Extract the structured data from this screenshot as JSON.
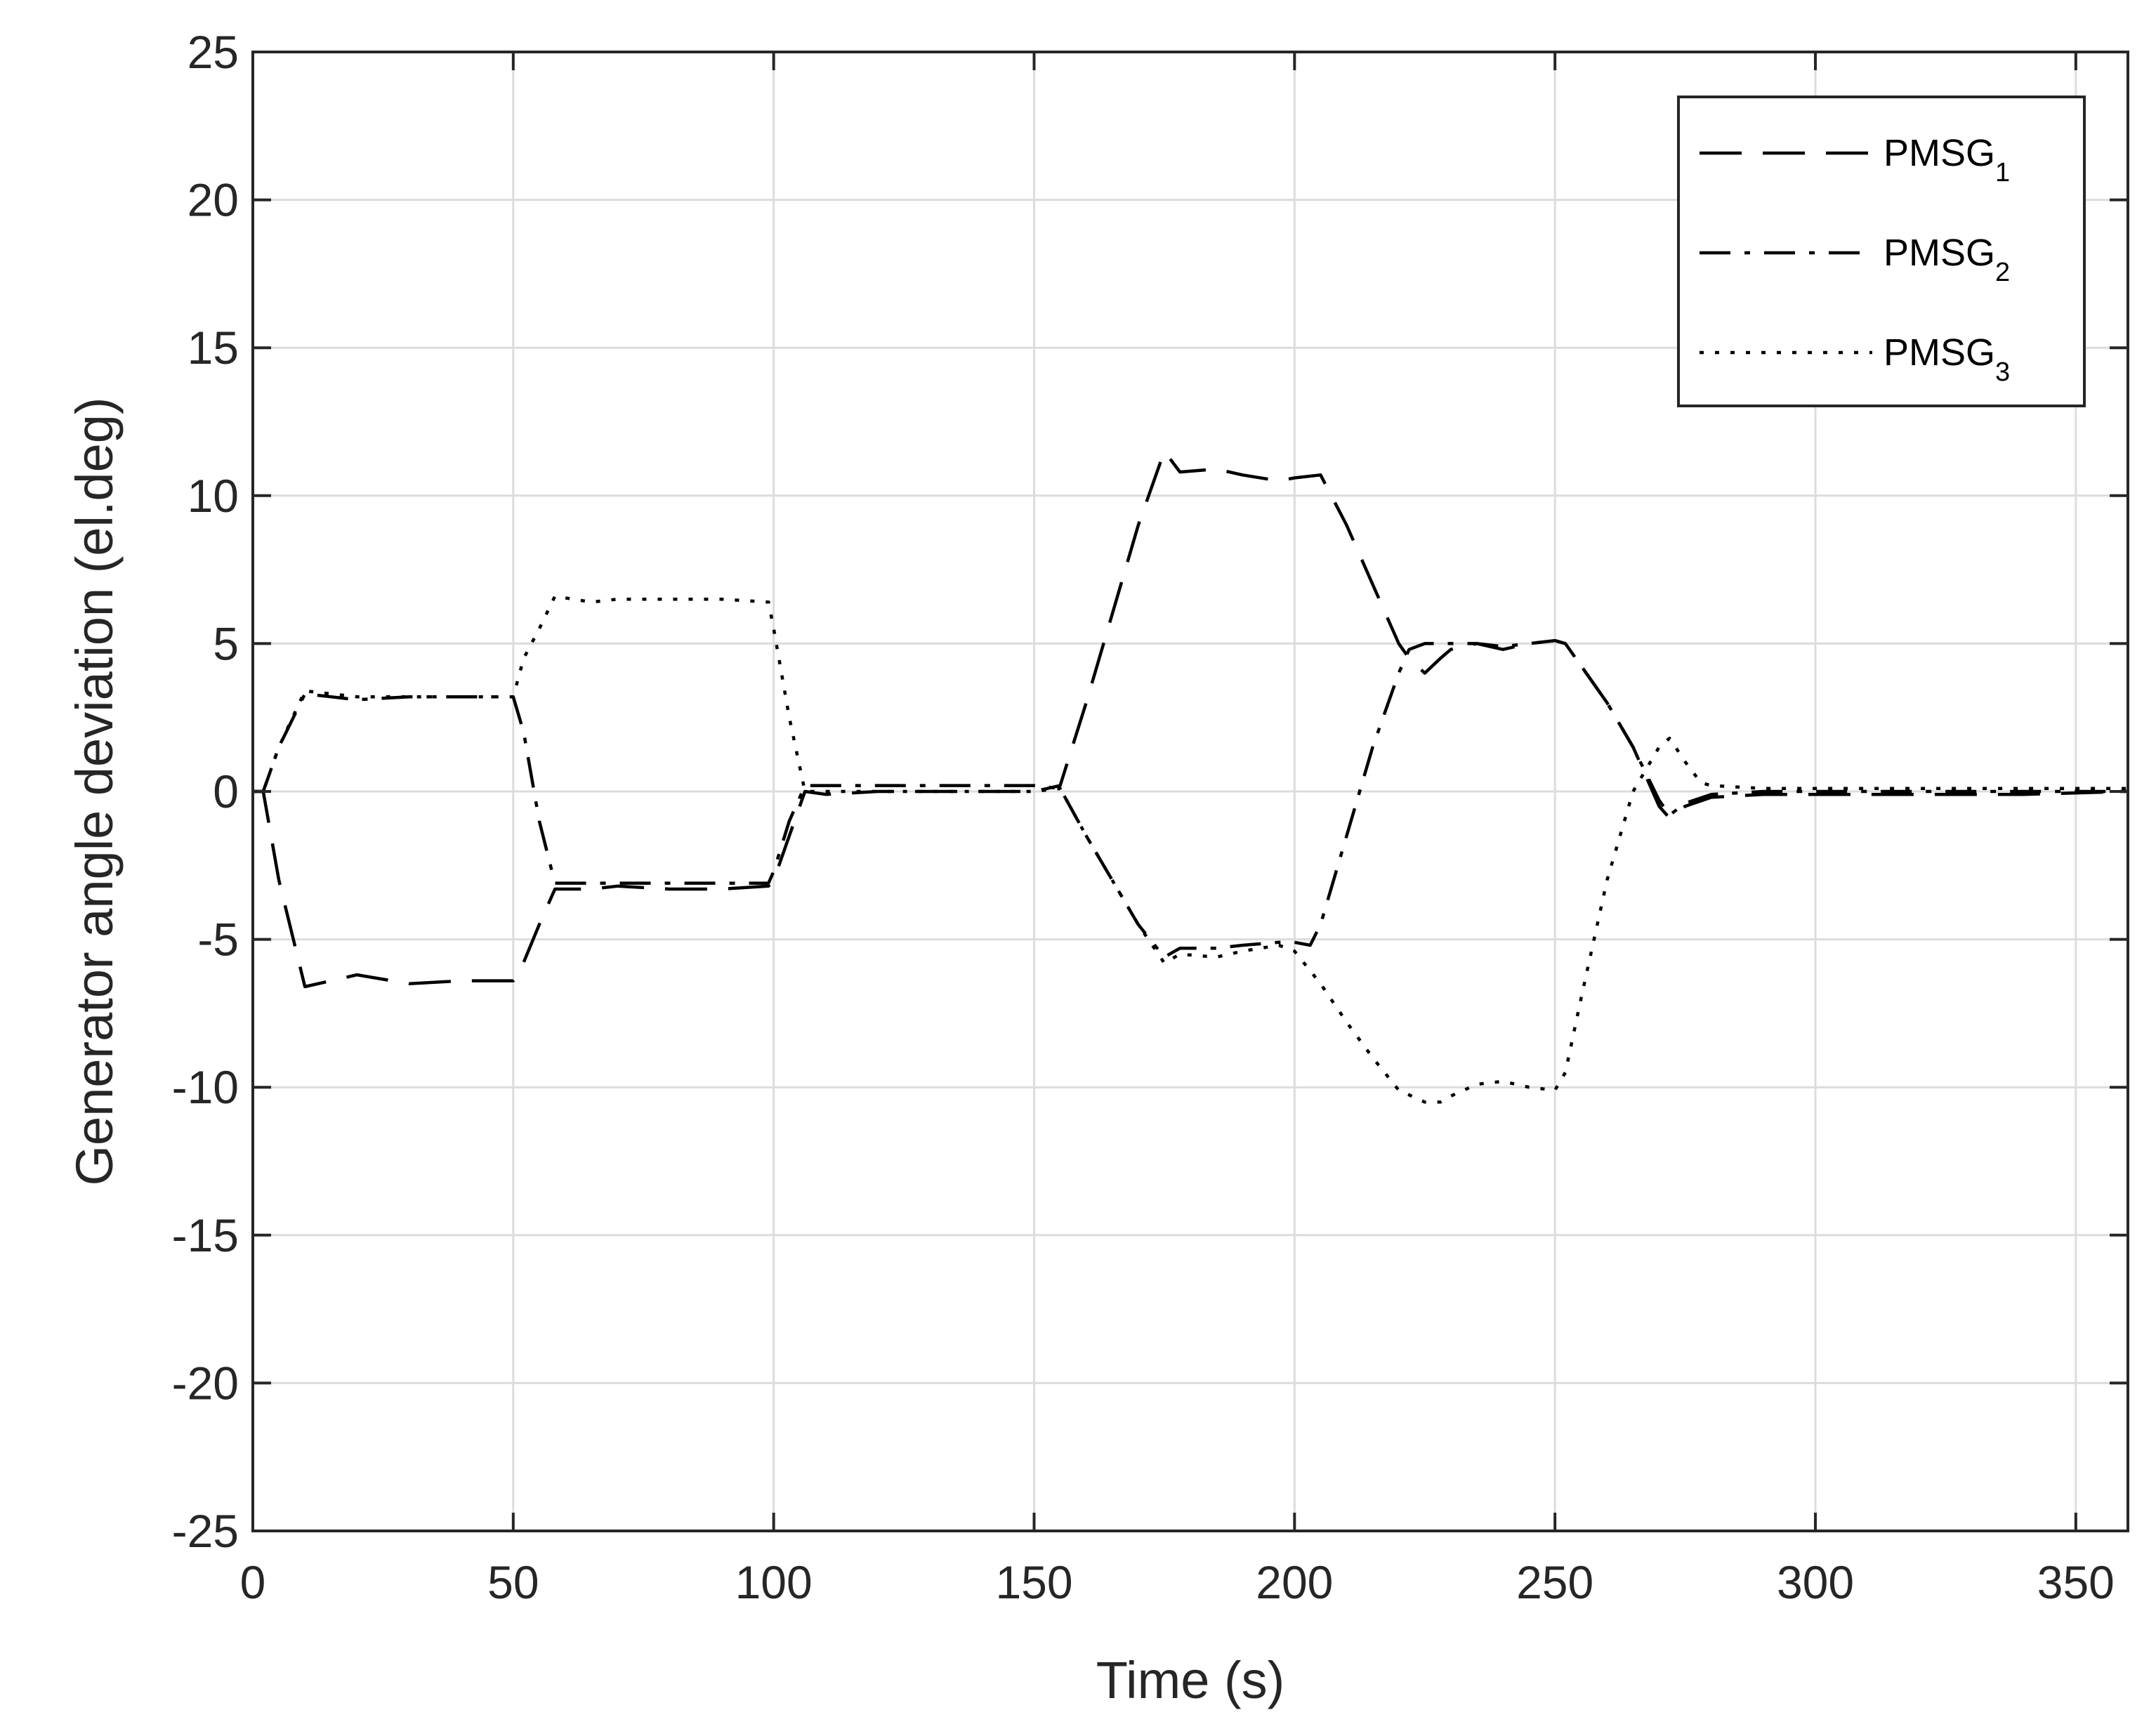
{
  "chart_data": {
    "type": "line",
    "xlabel": "Time (s)",
    "ylabel": "Generator angle deviation (el.deg)",
    "xlim": [
      0,
      360
    ],
    "ylim": [
      -25,
      25
    ],
    "xticks": [
      0,
      50,
      100,
      150,
      200,
      250,
      300,
      350
    ],
    "yticks": [
      25,
      20,
      15,
      10,
      5,
      0,
      -5,
      -10,
      -15,
      -20,
      -25
    ],
    "grid": true,
    "legend_position": "top-right",
    "line_color": "#000000",
    "grid_color": "#dcdcdc",
    "series": [
      {
        "name": "PMSG",
        "subscript": "1",
        "dash": "dashed",
        "x": [
          0,
          2,
          5,
          10,
          15,
          20,
          30,
          40,
          50,
          51,
          55,
          58,
          65,
          70,
          80,
          90,
          99,
          100,
          103,
          106,
          110,
          120,
          130,
          140,
          150,
          155,
          160,
          165,
          170,
          175,
          178,
          185,
          190,
          197,
          200,
          205,
          210,
          215,
          220,
          222,
          225,
          228,
          230,
          235,
          240,
          245,
          250,
          252,
          260,
          265,
          270,
          272,
          275,
          280,
          290,
          300,
          320,
          340,
          360
        ],
        "values": [
          0,
          0,
          -3,
          -6.6,
          -6.4,
          -6.2,
          -6.5,
          -6.4,
          -6.4,
          -6.2,
          -4.5,
          -3.3,
          -3.3,
          -3.2,
          -3.3,
          -3.3,
          -3.2,
          -3.0,
          -1.5,
          0,
          -0.1,
          0,
          0,
          0,
          0,
          0.2,
          3,
          6,
          9,
          11.5,
          10.8,
          10.9,
          10.7,
          10.5,
          10.6,
          10.7,
          9,
          7,
          5,
          4.5,
          4,
          4.5,
          4.8,
          5,
          4.8,
          5,
          5.1,
          5,
          3,
          1.5,
          -0.5,
          -0.9,
          -0.5,
          -0.2,
          -0.1,
          -0.1,
          -0.1,
          -0.1,
          0
        ]
      },
      {
        "name": "PMSG",
        "subscript": "2",
        "dash": "dashdot",
        "x": [
          0,
          2,
          5,
          10,
          15,
          20,
          30,
          40,
          50,
          52,
          55,
          58,
          65,
          70,
          80,
          90,
          99,
          100,
          103,
          106,
          110,
          120,
          130,
          140,
          150,
          155,
          160,
          165,
          170,
          175,
          178,
          185,
          190,
          197,
          200,
          203,
          205,
          210,
          215,
          220,
          222,
          225,
          228,
          230,
          235,
          240,
          245,
          250,
          252,
          260,
          265,
          270,
          272,
          275,
          280,
          290,
          300,
          320,
          340,
          360
        ],
        "values": [
          0,
          0,
          1.5,
          3.3,
          3.2,
          3.1,
          3.2,
          3.2,
          3.2,
          2,
          -1,
          -3.1,
          -3.1,
          -3.1,
          -3.1,
          -3.1,
          -3.1,
          -2.7,
          -1,
          0.2,
          0.2,
          0.2,
          0.2,
          0.2,
          0.2,
          0.1,
          -1.5,
          -3,
          -4.5,
          -5.6,
          -5.3,
          -5.3,
          -5.2,
          -5.1,
          -5.1,
          -5.2,
          -4.5,
          -1.5,
          1.5,
          4,
          4.8,
          5,
          5,
          5,
          5,
          4.9,
          5,
          5.1,
          5,
          3,
          1.5,
          -0.3,
          -0.8,
          -0.4,
          -0.1,
          0,
          0,
          0,
          0,
          0
        ]
      },
      {
        "name": "PMSG",
        "subscript": "3",
        "dash": "dotted",
        "x": [
          0,
          2,
          5,
          10,
          15,
          20,
          30,
          40,
          50,
          52,
          55,
          58,
          65,
          70,
          80,
          90,
          99,
          100,
          103,
          106,
          110,
          120,
          130,
          140,
          150,
          155,
          160,
          165,
          170,
          175,
          178,
          185,
          190,
          197,
          200,
          205,
          210,
          215,
          220,
          225,
          228,
          230,
          235,
          240,
          245,
          250,
          252,
          255,
          260,
          265,
          270,
          272,
          275,
          278,
          280,
          290,
          300,
          320,
          340,
          360
        ],
        "values": [
          0,
          0,
          1.5,
          3.4,
          3.3,
          3.2,
          3.2,
          3.2,
          3.2,
          4.5,
          5.5,
          6.6,
          6.4,
          6.5,
          6.5,
          6.5,
          6.4,
          5.5,
          2.5,
          0,
          0,
          0,
          0,
          0,
          0,
          0.1,
          -1.5,
          -3,
          -4.5,
          -5.8,
          -5.5,
          -5.6,
          -5.4,
          -5.2,
          -5.4,
          -6.5,
          -7.8,
          -9,
          -10.1,
          -10.5,
          -10.5,
          -10.3,
          -9.9,
          -9.8,
          -10,
          -10.1,
          -9.5,
          -7,
          -3,
          0,
          1.5,
          1.8,
          1,
          0.3,
          0.2,
          0.1,
          0.1,
          0.1,
          0.1,
          0.1
        ]
      }
    ]
  }
}
